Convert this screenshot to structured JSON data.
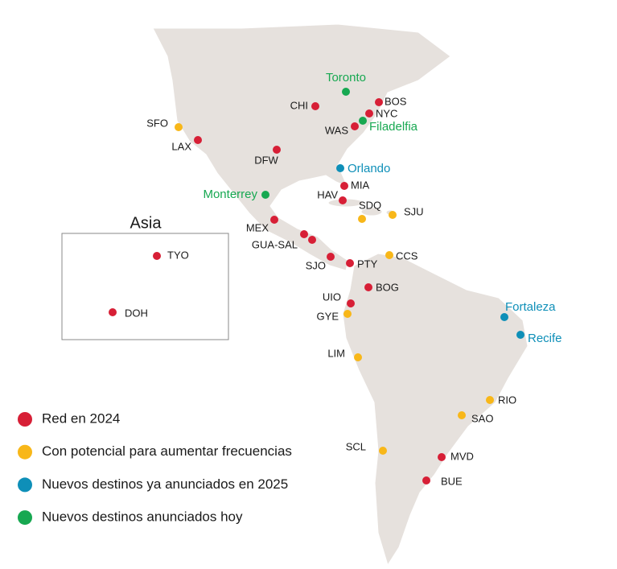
{
  "map": {
    "cities": [
      {
        "label": "CHI",
        "color": "#d71f36"
      },
      {
        "label": "BOS",
        "color": "#d71f36"
      },
      {
        "label": "NYC",
        "color": "#d71f36"
      },
      {
        "label": "Filadelfia",
        "color": "#17a851",
        "label_color": "#17a851"
      },
      {
        "label": "WAS",
        "color": "#d71f36"
      },
      {
        "label": "Toronto",
        "color": "#17a851",
        "label_color": "#17a851"
      },
      {
        "label": "SFO",
        "color": "#f8b719"
      },
      {
        "label": "LAX",
        "color": "#d71f36"
      },
      {
        "label": "DFW",
        "color": "#d71f36"
      },
      {
        "label": "Orlando",
        "color": "#0e8fb8",
        "label_color": "#0e8fb8"
      },
      {
        "label": "Monterrey",
        "color": "#17a851",
        "label_color": "#17a851"
      },
      {
        "label": "MIA",
        "color": "#d71f36"
      },
      {
        "label": "HAV",
        "color": "#d71f36"
      },
      {
        "label": "SDQ",
        "color": "#f8b719"
      },
      {
        "label": "SJU",
        "color": "#f8b719"
      },
      {
        "label": "MEX",
        "color": "#d71f36"
      },
      {
        "label": "GUA-SAL",
        "color": "#d71f36"
      },
      {
        "label": "SJO",
        "color": "#d71f36"
      },
      {
        "label": "PTY",
        "color": "#d71f36"
      },
      {
        "label": "CCS",
        "color": "#f8b719"
      },
      {
        "label": "BOG",
        "color": "#d71f36"
      },
      {
        "label": "UIO",
        "color": "#d71f36"
      },
      {
        "label": "GYE",
        "color": "#f8b719"
      },
      {
        "label": "Fortaleza",
        "color": "#0e8fb8",
        "label_color": "#0e8fb8"
      },
      {
        "label": "Recife",
        "color": "#0e8fb8",
        "label_color": "#0e8fb8"
      },
      {
        "label": "LIM",
        "color": "#f8b719"
      },
      {
        "label": "RIO",
        "color": "#f8b719"
      },
      {
        "label": "SAO",
        "color": "#f8b719"
      },
      {
        "label": "SCL",
        "color": "#f8b719"
      },
      {
        "label": "MVD",
        "color": "#d71f36"
      },
      {
        "label": "BUE",
        "color": "#d71f36"
      }
    ],
    "inset": {
      "title": "Asia",
      "cities": [
        {
          "label": "TYO",
          "color": "#d71f36"
        },
        {
          "label": "DOH",
          "color": "#d71f36"
        }
      ]
    },
    "legend": [
      {
        "label": "Red en 2024",
        "color": "#d71f36"
      },
      {
        "label": "Con potencial para aumentar frecuencias",
        "color": "#f8b719"
      },
      {
        "label": "Nuevos destinos ya anunciados en 2025",
        "color": "#0e8fb8"
      },
      {
        "label": "Nuevos destinos anunciados hoy",
        "color": "#17a851"
      }
    ]
  }
}
